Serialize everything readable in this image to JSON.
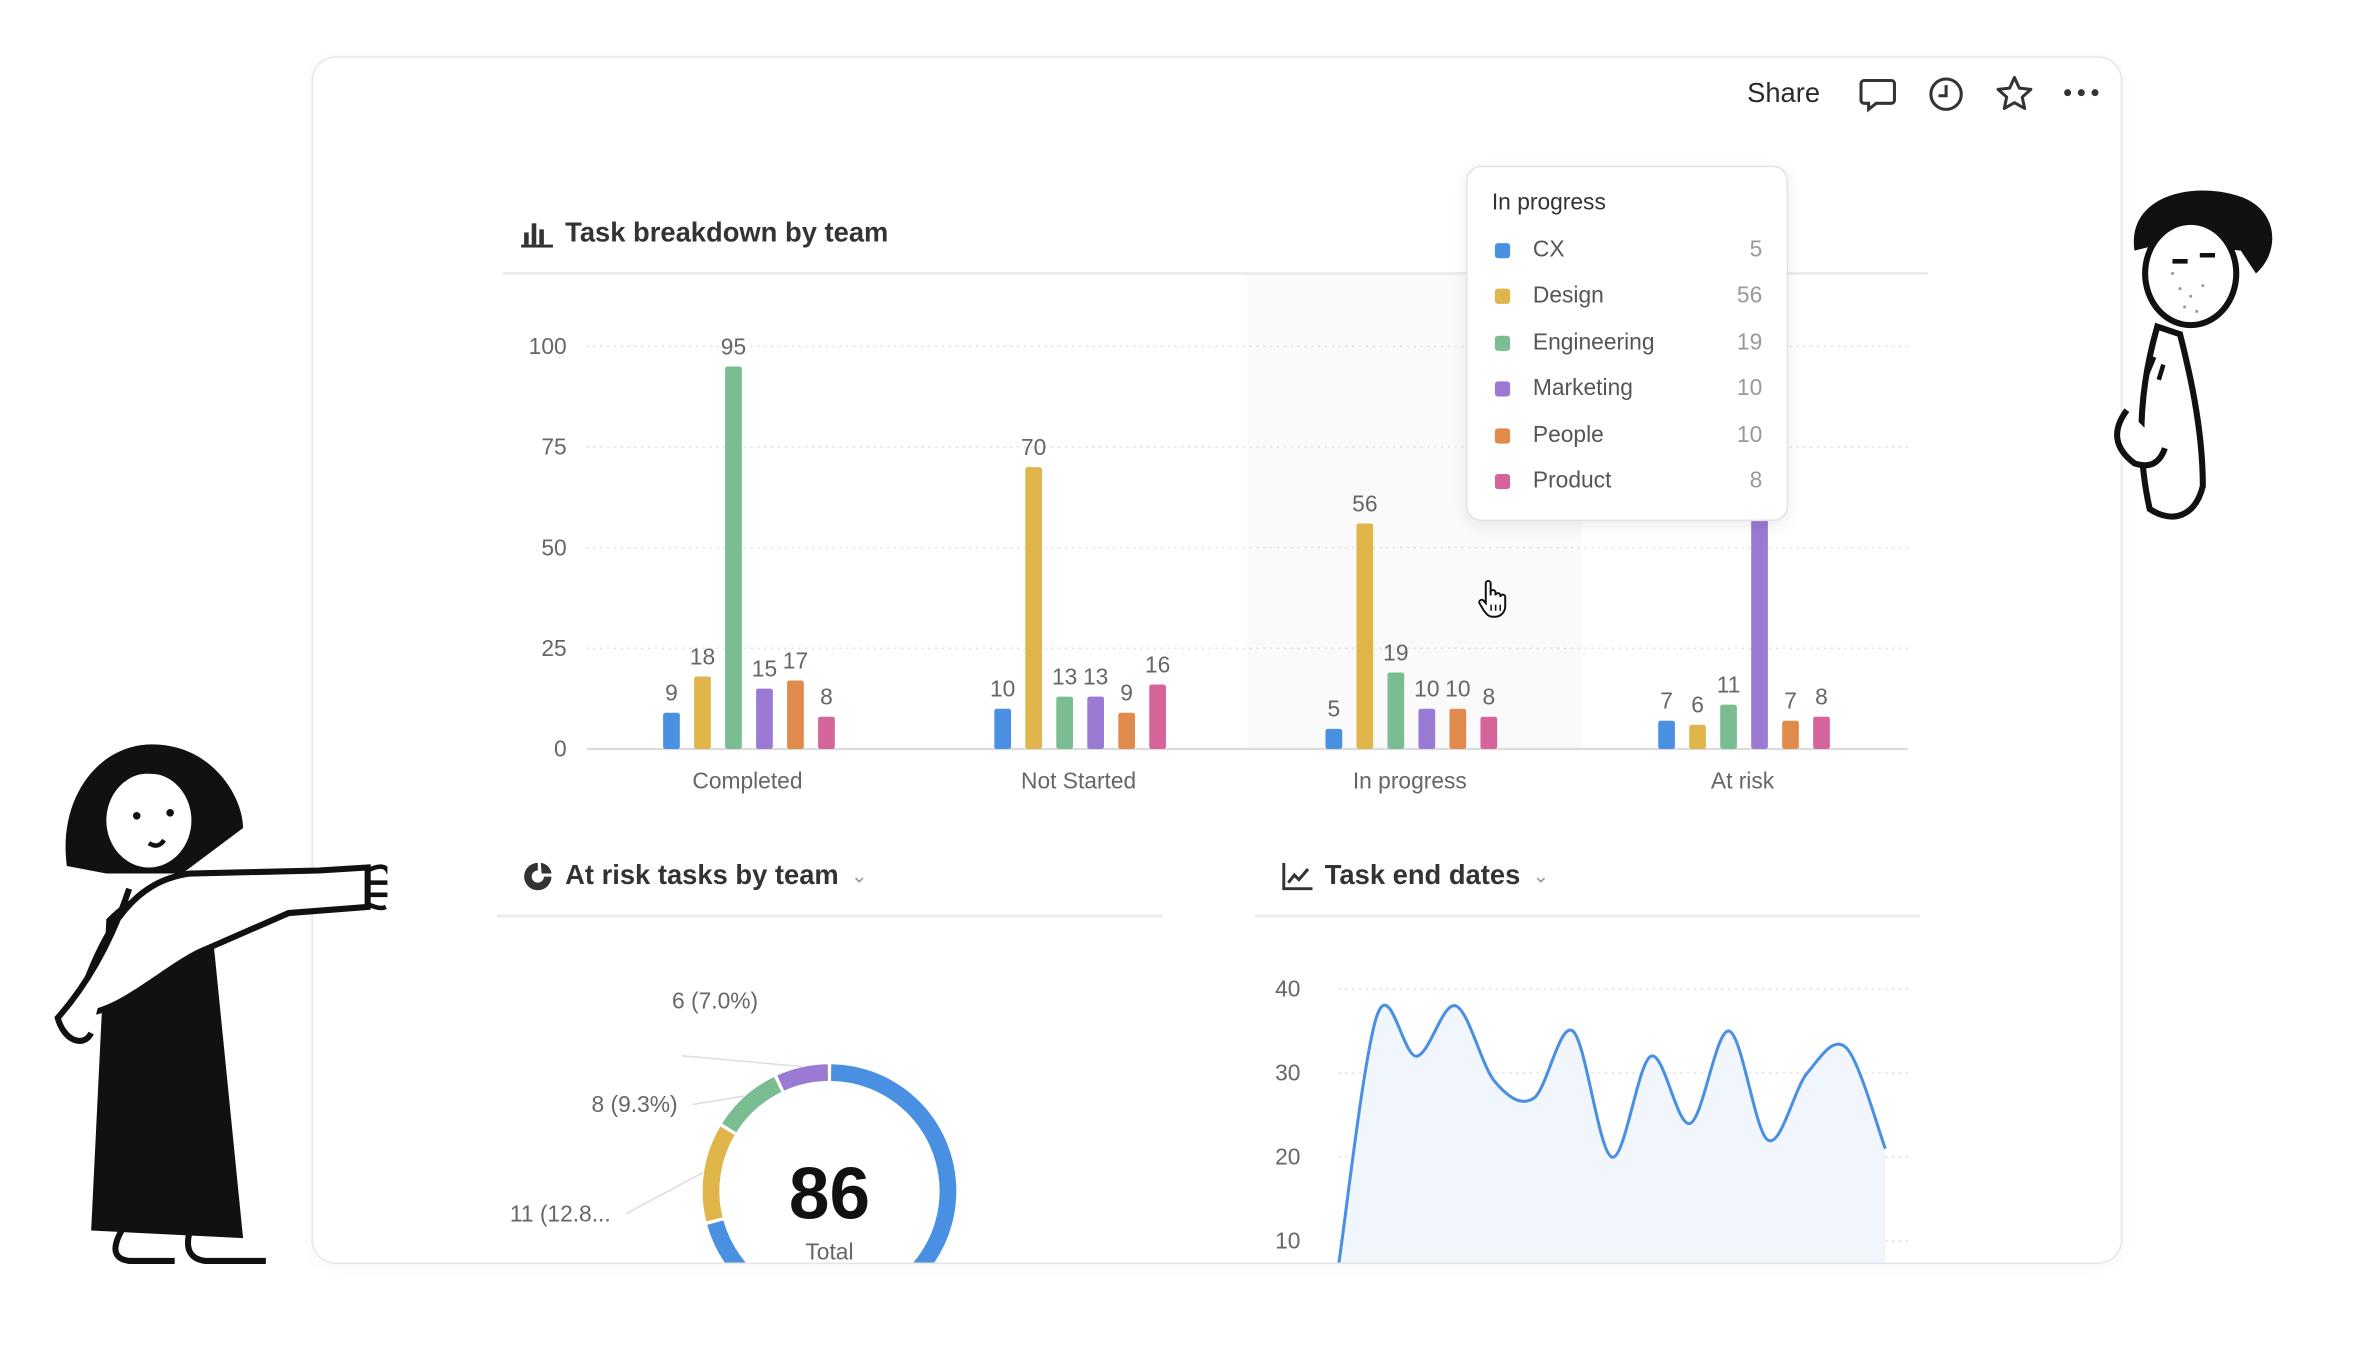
{
  "window": {
    "traffic_lights": [
      "#ee5f57",
      "#e0b443",
      "#5cc13f"
    ]
  },
  "header": {
    "share_label": "Share",
    "icons": [
      "comment-icon",
      "history-icon",
      "star-icon",
      "more-icon"
    ]
  },
  "colors": {
    "CX": "#4a90e2",
    "Design": "#e0b54a",
    "Engineering": "#7bbd93",
    "Marketing": "#9b7ad4",
    "People": "#e08b4c",
    "Product": "#d5649b"
  },
  "bar_panel": {
    "title": "Task breakdown by team",
    "icon": "bar-chart-icon"
  },
  "tooltip": {
    "title": "In progress",
    "rows": [
      {
        "team": "CX",
        "value": "5"
      },
      {
        "team": "Design",
        "value": "56"
      },
      {
        "team": "Engineering",
        "value": "19"
      },
      {
        "team": "Marketing",
        "value": "10"
      },
      {
        "team": "People",
        "value": "10"
      },
      {
        "team": "Product",
        "value": "8"
      }
    ]
  },
  "donut_panel": {
    "title": "At risk tasks by team",
    "icon": "donut-chart-icon",
    "total": "86",
    "total_label": "Total"
  },
  "line_panel": {
    "title": "Task end dates",
    "icon": "line-chart-icon"
  },
  "chart_data": [
    {
      "type": "bar",
      "title": "Task breakdown by team",
      "categories": [
        "Completed",
        "Not Started",
        "In progress",
        "At risk"
      ],
      "ylim": [
        0,
        100
      ],
      "yticks": [
        0,
        25,
        50,
        75,
        100
      ],
      "grid": true,
      "highlighted_category": "In progress",
      "series": [
        {
          "name": "CX",
          "values": [
            9,
            10,
            5,
            7
          ]
        },
        {
          "name": "Design",
          "values": [
            18,
            70,
            56,
            6
          ]
        },
        {
          "name": "Engineering",
          "values": [
            95,
            13,
            19,
            11
          ]
        },
        {
          "name": "Marketing",
          "values": [
            15,
            13,
            10,
            null
          ]
        },
        {
          "name": "People",
          "values": [
            17,
            9,
            10,
            7
          ]
        },
        {
          "name": "Product",
          "values": [
            8,
            16,
            8,
            8
          ]
        }
      ]
    },
    {
      "type": "pie",
      "title": "At risk tasks by team",
      "total": 86,
      "slices": [
        {
          "value": 6,
          "label": "6 (7.0%)",
          "color": "#9b7ad4"
        },
        {
          "value": 8,
          "label": "8 (9.3%)",
          "color": "#7bbd93"
        },
        {
          "value": 11,
          "label": "11 (12.8...",
          "color": "#e0b54a"
        }
      ],
      "remainder_color": "#4a90e2"
    },
    {
      "type": "area",
      "title": "Task end dates",
      "yticks": [
        10,
        20,
        30,
        40
      ],
      "ylim": [
        7,
        40
      ],
      "grid": true,
      "y": [
        7,
        37,
        32,
        38,
        29,
        27,
        35,
        20,
        32,
        24,
        35,
        22,
        30,
        33,
        21
      ]
    }
  ]
}
